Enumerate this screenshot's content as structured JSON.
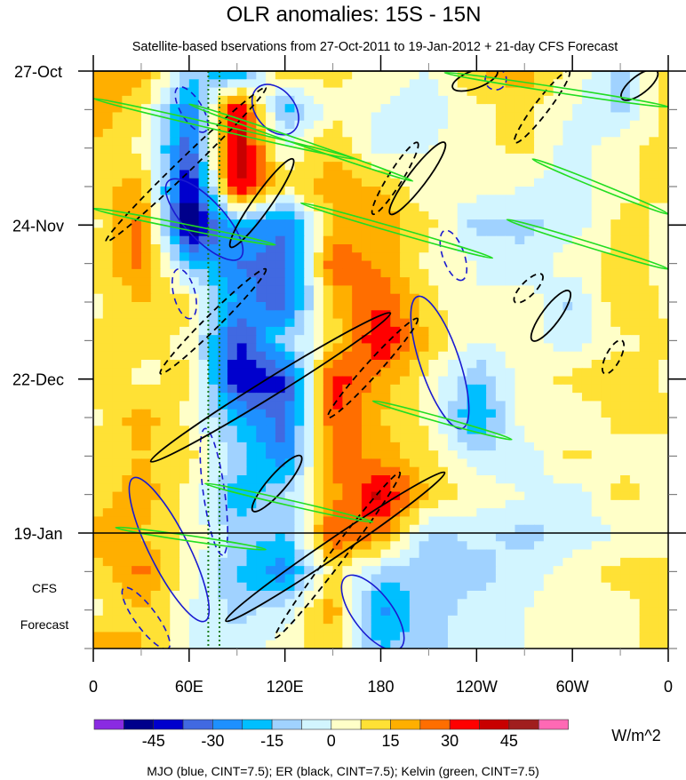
{
  "chart_data": {
    "type": "heatmap",
    "title": "OLR anomalies: 15S - 15N",
    "subtitle": "Satellite-based bservations from 27-Oct-2011 to 19-Jan-2012 + 21-day CFS Forecast",
    "x_range_lon": [
      0,
      360
    ],
    "x_ticks": [
      {
        "lon": 0,
        "label": "0"
      },
      {
        "lon": 60,
        "label": "60E"
      },
      {
        "lon": 120,
        "label": "120E"
      },
      {
        "lon": 180,
        "label": "180"
      },
      {
        "lon": 240,
        "label": "120W"
      },
      {
        "lon": 300,
        "label": "60W"
      },
      {
        "lon": 360,
        "label": "0"
      }
    ],
    "y_range_days": [
      0,
      105
    ],
    "y_ticks": [
      {
        "day": 0,
        "label": "27-Oct"
      },
      {
        "day": 28,
        "label": "24-Nov"
      },
      {
        "day": 56,
        "label": "22-Dec"
      },
      {
        "day": 84,
        "label": "19-Jan"
      }
    ],
    "forecast_start_day": 84,
    "forecast_label": [
      "CFS",
      "Forecast"
    ],
    "grid_lons": [
      0,
      30,
      60,
      90,
      120,
      150,
      180,
      210,
      240,
      270,
      300,
      330,
      360
    ],
    "grid_days": [
      0,
      7,
      14,
      21,
      28,
      35,
      42,
      49,
      56,
      63,
      70,
      77,
      84,
      91,
      98,
      105
    ],
    "values": [
      [
        15,
        20,
        -10,
        -25,
        15,
        10,
        5,
        0,
        15,
        20,
        5,
        -10,
        15
      ],
      [
        20,
        10,
        -30,
        40,
        -20,
        5,
        0,
        -5,
        5,
        10,
        0,
        -10,
        10
      ],
      [
        15,
        5,
        -35,
        45,
        0,
        15,
        -5,
        0,
        5,
        10,
        -5,
        5,
        10
      ],
      [
        10,
        20,
        -50,
        40,
        10,
        20,
        15,
        0,
        5,
        0,
        -5,
        5,
        10
      ],
      [
        5,
        25,
        -55,
        -20,
        -30,
        15,
        20,
        10,
        -10,
        -10,
        -5,
        10,
        5
      ],
      [
        10,
        25,
        -15,
        -30,
        -35,
        30,
        20,
        5,
        0,
        -5,
        5,
        10,
        5
      ],
      [
        5,
        15,
        10,
        -25,
        -35,
        15,
        30,
        10,
        0,
        5,
        -10,
        15,
        5
      ],
      [
        10,
        10,
        5,
        -40,
        -10,
        10,
        40,
        15,
        0,
        5,
        -5,
        5,
        10
      ],
      [
        15,
        5,
        10,
        -45,
        -40,
        35,
        20,
        5,
        -15,
        5,
        10,
        15,
        5
      ],
      [
        5,
        20,
        5,
        -20,
        -35,
        30,
        15,
        5,
        -25,
        5,
        0,
        10,
        10
      ],
      [
        10,
        15,
        10,
        -10,
        -30,
        25,
        20,
        10,
        -5,
        -5,
        10,
        5,
        5
      ],
      [
        10,
        20,
        5,
        -20,
        -10,
        20,
        40,
        15,
        5,
        0,
        -5,
        10,
        5
      ],
      [
        20,
        15,
        5,
        -10,
        -15,
        30,
        25,
        -10,
        -5,
        -10,
        -5,
        0,
        5
      ],
      [
        10,
        25,
        5,
        -15,
        -30,
        10,
        -10,
        -15,
        -10,
        -5,
        5,
        10,
        10
      ],
      [
        5,
        15,
        0,
        -10,
        -5,
        20,
        -25,
        -10,
        -5,
        0,
        5,
        5,
        10
      ],
      [
        20,
        15,
        0,
        -5,
        5,
        10,
        -15,
        -10,
        -5,
        0,
        5,
        5,
        10
      ]
    ],
    "colorbar": {
      "boundaries": [
        -52.5,
        -45,
        -37.5,
        -30,
        -22.5,
        -15,
        -7.5,
        0,
        7.5,
        15,
        22.5,
        30,
        37.5,
        45,
        52.5
      ],
      "colors": [
        "#8a2be2",
        "#00008b",
        "#0000cd",
        "#4169e1",
        "#1e90ff",
        "#00bfff",
        "#a0d2ff",
        "#d2f5ff",
        "#ffffc8",
        "#ffe135",
        "#ffaf00",
        "#ff6e00",
        "#ff0000",
        "#c80000",
        "#a01e1e",
        "#ff69b4"
      ],
      "labels": [
        "-45",
        "-30",
        "-15",
        "0",
        "15",
        "30",
        "45"
      ],
      "label_values": [
        -45,
        -30,
        -15,
        0,
        15,
        30,
        45
      ],
      "units": "W/m^2"
    },
    "reference_lines_lon": [
      72,
      79
    ],
    "contours": {
      "legend": "MJO (blue, CINT=7.5); ER (black, CINT=7.5); Kelvin (green, CINT=7.5)",
      "kelvin": {
        "color": "#22dd22",
        "segments": [
          [
            [
              0,
              5
            ],
            [
              164,
              16
            ]
          ],
          [
            [
              0,
              25
            ],
            [
              114,
              31.6
            ]
          ],
          [
            [
              175,
              60
            ],
            [
              262,
              67
            ]
          ],
          [
            [
              70,
              75
            ],
            [
              175,
              82
            ]
          ],
          [
            [
              14,
              83
            ],
            [
              108,
              87
            ]
          ],
          [
            [
              220,
              0.3
            ],
            [
              360,
              6.5
            ]
          ],
          [
            [
              275,
              16
            ],
            [
              360,
              26
            ]
          ],
          [
            [
              259,
              27
            ],
            [
              360,
              36
            ]
          ],
          [
            [
              60,
              6
            ],
            [
              200,
              20
            ]
          ],
          [
            [
              130,
              24
            ],
            [
              250,
              34
            ]
          ]
        ]
      },
      "er_positive": {
        "color": "#000000",
        "segments": [
          [
            [
              36,
              71
            ],
            [
              186,
              44
            ]
          ],
          [
            [
              83,
              100
            ],
            [
              220,
              73
            ]
          ],
          [
            [
              86,
              32
            ],
            [
              125,
              16
            ]
          ],
          [
            [
              186,
              26
            ],
            [
              220,
              13
            ]
          ],
          [
            [
              225,
              3
            ],
            [
              253,
              0
            ]
          ],
          [
            [
              275,
              49
            ],
            [
              298,
              40
            ]
          ],
          [
            [
              331,
              5
            ],
            [
              353,
              0
            ]
          ],
          [
            [
              100,
              80
            ],
            [
              130,
              70
            ]
          ]
        ]
      },
      "er_negative": {
        "color": "#000000",
        "segments": [
          [
            [
              8,
              31
            ],
            [
              108,
              3
            ]
          ],
          [
            [
              42,
              55
            ],
            [
              108,
              36
            ]
          ],
          [
            [
              114,
              103
            ],
            [
              192,
              73
            ]
          ],
          [
            [
              147,
              63
            ],
            [
              203,
              45
            ]
          ],
          [
            [
              264,
              42
            ],
            [
              281,
              37
            ]
          ],
          [
            [
              320,
              55
            ],
            [
              331,
              49
            ]
          ],
          [
            [
              264,
              13
            ],
            [
              298,
              0
            ]
          ],
          [
            [
              175,
              26
            ],
            [
              203,
              13
            ]
          ]
        ]
      },
      "mjo_positive": {
        "color": "#1a1ad0",
        "segments": [
          [
            [
              47,
              20
            ],
            [
              92,
              34
            ]
          ],
          [
            [
              25,
              74
            ],
            [
              70,
              100
            ]
          ],
          [
            [
              158,
              92
            ],
            [
              192,
              105
            ]
          ],
          [
            [
              203,
              41
            ],
            [
              231,
              65
            ]
          ],
          [
            [
              103,
              3
            ],
            [
              125,
              11
            ]
          ]
        ]
      },
      "mjo_negative": {
        "color": "#1a1ad0",
        "segments": [
          [
            [
              19,
              94
            ],
            [
              47,
              105
            ]
          ],
          [
            [
              220,
              29
            ],
            [
              231,
              38
            ]
          ],
          [
            [
              53,
              36
            ],
            [
              61,
              45
            ]
          ],
          [
            [
              70,
              65
            ],
            [
              81,
              88
            ]
          ],
          [
            [
              53,
              3
            ],
            [
              70,
              11
            ]
          ],
          [
            [
              248,
              0
            ],
            [
              256,
              3
            ]
          ]
        ]
      }
    }
  }
}
